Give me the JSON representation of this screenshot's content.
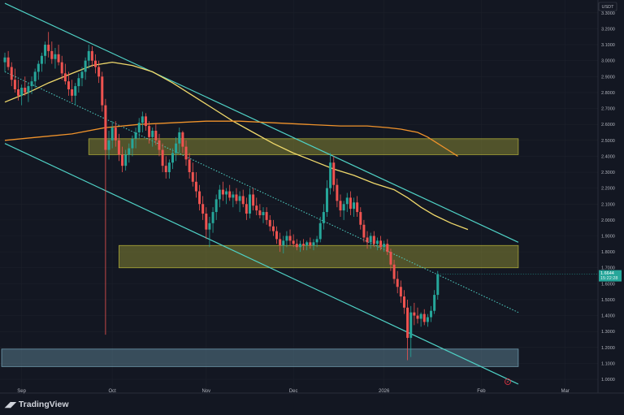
{
  "chart_data": {
    "type": "candlestick",
    "currency": "USDT",
    "price_label": "1.6644",
    "countdown_label": "15:22:28",
    "ylim": [
      0.95,
      3.38
    ],
    "y_ticks": [
      "3.3000",
      "3.2000",
      "3.1000",
      "3.0000",
      "2.9000",
      "2.8000",
      "2.7000",
      "2.6000",
      "2.5000",
      "2.4000",
      "2.3000",
      "2.2000",
      "2.1000",
      "2.0000",
      "1.9000",
      "1.8000",
      "1.7000",
      "1.6000",
      "1.5000",
      "1.4000",
      "1.3000",
      "1.2000",
      "1.1000",
      "1.0000"
    ],
    "x_ticks": [
      "Sep",
      "Oct",
      "Nov",
      "Dec",
      "2026",
      "Feb",
      "Mar"
    ],
    "candles": [
      {
        "o": 2.99,
        "h": 3.05,
        "l": 2.93,
        "c": 3.02
      },
      {
        "o": 3.02,
        "h": 3.06,
        "l": 2.94,
        "c": 2.96
      },
      {
        "o": 2.96,
        "h": 2.99,
        "l": 2.84,
        "c": 2.88
      },
      {
        "o": 2.88,
        "h": 2.95,
        "l": 2.8,
        "c": 2.82
      },
      {
        "o": 2.82,
        "h": 2.88,
        "l": 2.75,
        "c": 2.78
      },
      {
        "o": 2.78,
        "h": 2.85,
        "l": 2.72,
        "c": 2.83
      },
      {
        "o": 2.83,
        "h": 2.9,
        "l": 2.78,
        "c": 2.8
      },
      {
        "o": 2.8,
        "h": 2.86,
        "l": 2.74,
        "c": 2.84
      },
      {
        "o": 2.84,
        "h": 2.9,
        "l": 2.79,
        "c": 2.87
      },
      {
        "o": 2.87,
        "h": 2.95,
        "l": 2.83,
        "c": 2.93
      },
      {
        "o": 2.93,
        "h": 3.0,
        "l": 2.88,
        "c": 2.98
      },
      {
        "o": 2.98,
        "h": 3.05,
        "l": 2.93,
        "c": 3.03
      },
      {
        "o": 3.03,
        "h": 3.12,
        "l": 2.98,
        "c": 3.1
      },
      {
        "o": 3.1,
        "h": 3.18,
        "l": 3.02,
        "c": 3.06
      },
      {
        "o": 3.06,
        "h": 3.12,
        "l": 2.98,
        "c": 3.01
      },
      {
        "o": 3.01,
        "h": 3.08,
        "l": 2.95,
        "c": 3.04
      },
      {
        "o": 3.04,
        "h": 3.1,
        "l": 2.97,
        "c": 2.99
      },
      {
        "o": 2.99,
        "h": 3.03,
        "l": 2.88,
        "c": 2.92
      },
      {
        "o": 2.92,
        "h": 2.98,
        "l": 2.85,
        "c": 2.87
      },
      {
        "o": 2.87,
        "h": 2.93,
        "l": 2.78,
        "c": 2.82
      },
      {
        "o": 2.82,
        "h": 2.88,
        "l": 2.74,
        "c": 2.78
      },
      {
        "o": 2.78,
        "h": 2.86,
        "l": 2.72,
        "c": 2.84
      },
      {
        "o": 2.84,
        "h": 2.92,
        "l": 2.8,
        "c": 2.89
      },
      {
        "o": 2.89,
        "h": 2.96,
        "l": 2.84,
        "c": 2.93
      },
      {
        "o": 2.93,
        "h": 3.02,
        "l": 2.88,
        "c": 3.0
      },
      {
        "o": 3.0,
        "h": 3.1,
        "l": 2.95,
        "c": 3.06
      },
      {
        "o": 3.06,
        "h": 3.09,
        "l": 2.96,
        "c": 3.0
      },
      {
        "o": 3.0,
        "h": 3.04,
        "l": 2.92,
        "c": 2.96
      },
      {
        "o": 2.96,
        "h": 3.0,
        "l": 2.86,
        "c": 2.9
      },
      {
        "o": 2.9,
        "h": 2.93,
        "l": 2.68,
        "c": 2.72
      },
      {
        "o": 2.72,
        "h": 2.76,
        "l": 1.28,
        "c": 2.44
      },
      {
        "o": 2.44,
        "h": 2.56,
        "l": 2.38,
        "c": 2.5
      },
      {
        "o": 2.5,
        "h": 2.62,
        "l": 2.45,
        "c": 2.58
      },
      {
        "o": 2.58,
        "h": 2.62,
        "l": 2.46,
        "c": 2.5
      },
      {
        "o": 2.5,
        "h": 2.54,
        "l": 2.37,
        "c": 2.41
      },
      {
        "o": 2.41,
        "h": 2.46,
        "l": 2.3,
        "c": 2.34
      },
      {
        "o": 2.34,
        "h": 2.44,
        "l": 2.31,
        "c": 2.41
      },
      {
        "o": 2.41,
        "h": 2.48,
        "l": 2.36,
        "c": 2.45
      },
      {
        "o": 2.45,
        "h": 2.53,
        "l": 2.4,
        "c": 2.51
      },
      {
        "o": 2.51,
        "h": 2.58,
        "l": 2.45,
        "c": 2.55
      },
      {
        "o": 2.55,
        "h": 2.64,
        "l": 2.51,
        "c": 2.61
      },
      {
        "o": 2.61,
        "h": 2.68,
        "l": 2.55,
        "c": 2.65
      },
      {
        "o": 2.65,
        "h": 2.67,
        "l": 2.56,
        "c": 2.59
      },
      {
        "o": 2.59,
        "h": 2.62,
        "l": 2.48,
        "c": 2.52
      },
      {
        "o": 2.52,
        "h": 2.58,
        "l": 2.46,
        "c": 2.56
      },
      {
        "o": 2.56,
        "h": 2.6,
        "l": 2.47,
        "c": 2.5
      },
      {
        "o": 2.5,
        "h": 2.54,
        "l": 2.4,
        "c": 2.44
      },
      {
        "o": 2.44,
        "h": 2.48,
        "l": 2.3,
        "c": 2.34
      },
      {
        "o": 2.34,
        "h": 2.4,
        "l": 2.26,
        "c": 2.3
      },
      {
        "o": 2.3,
        "h": 2.38,
        "l": 2.26,
        "c": 2.36
      },
      {
        "o": 2.36,
        "h": 2.45,
        "l": 2.32,
        "c": 2.42
      },
      {
        "o": 2.42,
        "h": 2.52,
        "l": 2.37,
        "c": 2.48
      },
      {
        "o": 2.48,
        "h": 2.58,
        "l": 2.42,
        "c": 2.55
      },
      {
        "o": 2.55,
        "h": 2.56,
        "l": 2.42,
        "c": 2.46
      },
      {
        "o": 2.46,
        "h": 2.5,
        "l": 2.34,
        "c": 2.38
      },
      {
        "o": 2.38,
        "h": 2.42,
        "l": 2.26,
        "c": 2.3
      },
      {
        "o": 2.3,
        "h": 2.36,
        "l": 2.21,
        "c": 2.24
      },
      {
        "o": 2.24,
        "h": 2.3,
        "l": 2.14,
        "c": 2.18
      },
      {
        "o": 2.18,
        "h": 2.22,
        "l": 2.06,
        "c": 2.1
      },
      {
        "o": 2.1,
        "h": 2.15,
        "l": 2.0,
        "c": 2.04
      },
      {
        "o": 2.04,
        "h": 2.08,
        "l": 1.88,
        "c": 1.94
      },
      {
        "o": 1.94,
        "h": 2.02,
        "l": 1.83,
        "c": 1.98
      },
      {
        "o": 1.98,
        "h": 2.08,
        "l": 1.92,
        "c": 2.05
      },
      {
        "o": 2.05,
        "h": 2.16,
        "l": 2.0,
        "c": 2.13
      },
      {
        "o": 2.13,
        "h": 2.22,
        "l": 2.08,
        "c": 2.19
      },
      {
        "o": 2.19,
        "h": 2.24,
        "l": 2.12,
        "c": 2.16
      },
      {
        "o": 2.16,
        "h": 2.2,
        "l": 2.1,
        "c": 2.18
      },
      {
        "o": 2.18,
        "h": 2.22,
        "l": 2.12,
        "c": 2.14
      },
      {
        "o": 2.14,
        "h": 2.18,
        "l": 2.08,
        "c": 2.16
      },
      {
        "o": 2.16,
        "h": 2.2,
        "l": 2.1,
        "c": 2.12
      },
      {
        "o": 2.12,
        "h": 2.18,
        "l": 2.05,
        "c": 2.15
      },
      {
        "o": 2.15,
        "h": 2.19,
        "l": 2.08,
        "c": 2.1
      },
      {
        "o": 2.1,
        "h": 2.14,
        "l": 2.0,
        "c": 2.04
      },
      {
        "o": 2.04,
        "h": 2.2,
        "l": 2.01,
        "c": 2.16
      },
      {
        "o": 2.16,
        "h": 2.2,
        "l": 2.06,
        "c": 2.09
      },
      {
        "o": 2.09,
        "h": 2.14,
        "l": 2.03,
        "c": 2.06
      },
      {
        "o": 2.06,
        "h": 2.1,
        "l": 2.01,
        "c": 2.03
      },
      {
        "o": 2.03,
        "h": 2.08,
        "l": 1.98,
        "c": 2.05
      },
      {
        "o": 2.05,
        "h": 2.08,
        "l": 1.97,
        "c": 2.0
      },
      {
        "o": 2.0,
        "h": 2.03,
        "l": 1.93,
        "c": 1.96
      },
      {
        "o": 1.96,
        "h": 2.0,
        "l": 1.9,
        "c": 1.93
      },
      {
        "o": 1.93,
        "h": 1.96,
        "l": 1.85,
        "c": 1.88
      },
      {
        "o": 1.88,
        "h": 1.92,
        "l": 1.8,
        "c": 1.84
      },
      {
        "o": 1.84,
        "h": 1.9,
        "l": 1.79,
        "c": 1.87
      },
      {
        "o": 1.87,
        "h": 1.93,
        "l": 1.83,
        "c": 1.9
      },
      {
        "o": 1.9,
        "h": 1.94,
        "l": 1.84,
        "c": 1.87
      },
      {
        "o": 1.87,
        "h": 1.91,
        "l": 1.83,
        "c": 1.85
      },
      {
        "o": 1.85,
        "h": 1.88,
        "l": 1.81,
        "c": 1.83
      },
      {
        "o": 1.83,
        "h": 1.87,
        "l": 1.8,
        "c": 1.85
      },
      {
        "o": 1.85,
        "h": 1.88,
        "l": 1.81,
        "c": 1.84
      },
      {
        "o": 1.84,
        "h": 1.87,
        "l": 1.81,
        "c": 1.86
      },
      {
        "o": 1.86,
        "h": 1.89,
        "l": 1.82,
        "c": 1.84
      },
      {
        "o": 1.84,
        "h": 1.88,
        "l": 1.81,
        "c": 1.86
      },
      {
        "o": 1.86,
        "h": 1.9,
        "l": 1.83,
        "c": 1.88
      },
      {
        "o": 1.88,
        "h": 2.02,
        "l": 1.86,
        "c": 1.98
      },
      {
        "o": 1.98,
        "h": 2.1,
        "l": 1.94,
        "c": 2.05
      },
      {
        "o": 2.05,
        "h": 2.25,
        "l": 2.02,
        "c": 2.2
      },
      {
        "o": 2.2,
        "h": 2.42,
        "l": 2.16,
        "c": 2.36
      },
      {
        "o": 2.36,
        "h": 2.4,
        "l": 2.18,
        "c": 2.22
      },
      {
        "o": 2.22,
        "h": 2.26,
        "l": 2.08,
        "c": 2.12
      },
      {
        "o": 2.12,
        "h": 2.16,
        "l": 2.02,
        "c": 2.06
      },
      {
        "o": 2.06,
        "h": 2.12,
        "l": 2.0,
        "c": 2.1
      },
      {
        "o": 2.1,
        "h": 2.17,
        "l": 2.05,
        "c": 2.14
      },
      {
        "o": 2.14,
        "h": 2.18,
        "l": 2.03,
        "c": 2.07
      },
      {
        "o": 2.07,
        "h": 2.14,
        "l": 2.02,
        "c": 2.11
      },
      {
        "o": 2.11,
        "h": 2.15,
        "l": 2.02,
        "c": 2.05
      },
      {
        "o": 2.05,
        "h": 2.08,
        "l": 1.94,
        "c": 1.97
      },
      {
        "o": 1.97,
        "h": 2.0,
        "l": 1.86,
        "c": 1.89
      },
      {
        "o": 1.89,
        "h": 1.93,
        "l": 1.82,
        "c": 1.86
      },
      {
        "o": 1.86,
        "h": 1.92,
        "l": 1.82,
        "c": 1.9
      },
      {
        "o": 1.9,
        "h": 1.93,
        "l": 1.83,
        "c": 1.85
      },
      {
        "o": 1.85,
        "h": 1.89,
        "l": 1.81,
        "c": 1.87
      },
      {
        "o": 1.87,
        "h": 1.9,
        "l": 1.81,
        "c": 1.83
      },
      {
        "o": 1.83,
        "h": 1.87,
        "l": 1.8,
        "c": 1.85
      },
      {
        "o": 1.85,
        "h": 1.88,
        "l": 1.78,
        "c": 1.8
      },
      {
        "o": 1.8,
        "h": 1.82,
        "l": 1.68,
        "c": 1.72
      },
      {
        "o": 1.72,
        "h": 1.75,
        "l": 1.6,
        "c": 1.63
      },
      {
        "o": 1.63,
        "h": 1.68,
        "l": 1.54,
        "c": 1.58
      },
      {
        "o": 1.58,
        "h": 1.62,
        "l": 1.48,
        "c": 1.52
      },
      {
        "o": 1.52,
        "h": 1.56,
        "l": 1.41,
        "c": 1.45
      },
      {
        "o": 1.45,
        "h": 1.5,
        "l": 1.12,
        "c": 1.26
      },
      {
        "o": 1.26,
        "h": 1.46,
        "l": 1.14,
        "c": 1.42
      },
      {
        "o": 1.42,
        "h": 1.48,
        "l": 1.34,
        "c": 1.4
      },
      {
        "o": 1.4,
        "h": 1.45,
        "l": 1.35,
        "c": 1.38
      },
      {
        "o": 1.38,
        "h": 1.42,
        "l": 1.33,
        "c": 1.41
      },
      {
        "o": 1.41,
        "h": 1.44,
        "l": 1.34,
        "c": 1.36
      },
      {
        "o": 1.36,
        "h": 1.41,
        "l": 1.33,
        "c": 1.39
      },
      {
        "o": 1.39,
        "h": 1.46,
        "l": 1.36,
        "c": 1.43
      },
      {
        "o": 1.43,
        "h": 1.56,
        "l": 1.41,
        "c": 1.53
      },
      {
        "o": 1.53,
        "h": 1.68,
        "l": 1.5,
        "c": 1.66
      }
    ],
    "moving_averages": [
      {
        "color": "#f0d96b",
        "points": [
          [
            0,
            2.74
          ],
          [
            7,
            2.8
          ],
          [
            13,
            2.86
          ],
          [
            20,
            2.92
          ],
          [
            26,
            2.97
          ],
          [
            32,
            2.99
          ],
          [
            38,
            2.97
          ],
          [
            44,
            2.93
          ],
          [
            50,
            2.86
          ],
          [
            56,
            2.78
          ],
          [
            62,
            2.7
          ],
          [
            68,
            2.62
          ],
          [
            74,
            2.55
          ],
          [
            80,
            2.48
          ],
          [
            86,
            2.42
          ],
          [
            92,
            2.37
          ],
          [
            98,
            2.32
          ],
          [
            104,
            2.28
          ],
          [
            110,
            2.23
          ],
          [
            116,
            2.19
          ],
          [
            120,
            2.14
          ],
          [
            124,
            2.08
          ],
          [
            128,
            2.03
          ],
          [
            133,
            1.98
          ],
          [
            138,
            1.94
          ]
        ]
      },
      {
        "color": "#f0932b",
        "points": [
          [
            0,
            2.5
          ],
          [
            10,
            2.52
          ],
          [
            20,
            2.54
          ],
          [
            30,
            2.58
          ],
          [
            40,
            2.6
          ],
          [
            50,
            2.61
          ],
          [
            60,
            2.62
          ],
          [
            70,
            2.62
          ],
          [
            80,
            2.61
          ],
          [
            90,
            2.6
          ],
          [
            100,
            2.59
          ],
          [
            108,
            2.59
          ],
          [
            114,
            2.58
          ],
          [
            118,
            2.57
          ],
          [
            123,
            2.55
          ],
          [
            126,
            2.52
          ],
          [
            129,
            2.48
          ],
          [
            132,
            2.44
          ],
          [
            135,
            2.4
          ]
        ]
      }
    ],
    "zones": [
      {
        "low": 2.41,
        "high": 2.51,
        "from": 25,
        "to": 153,
        "color": "#c7c23c"
      },
      {
        "low": 1.7,
        "high": 1.84,
        "from": 34,
        "to": 153,
        "color": "#c7c23c"
      },
      {
        "low": 1.08,
        "high": 1.19,
        "from": -1,
        "to": 153,
        "color": "#7fb3c7"
      }
    ],
    "trendlines": [
      {
        "color": "#4fd1c5",
        "dashed": false,
        "points": [
          [
            0,
            3.36
          ],
          [
            153,
            1.86
          ]
        ]
      },
      {
        "color": "#4fd1c5",
        "dashed": false,
        "points": [
          [
            0,
            2.48
          ],
          [
            153,
            0.97
          ]
        ]
      },
      {
        "color": "#4fd1c5",
        "dashed": true,
        "points": [
          [
            0,
            2.93
          ],
          [
            153,
            1.42
          ]
        ]
      }
    ]
  },
  "branding": {
    "name": "TradingView"
  }
}
